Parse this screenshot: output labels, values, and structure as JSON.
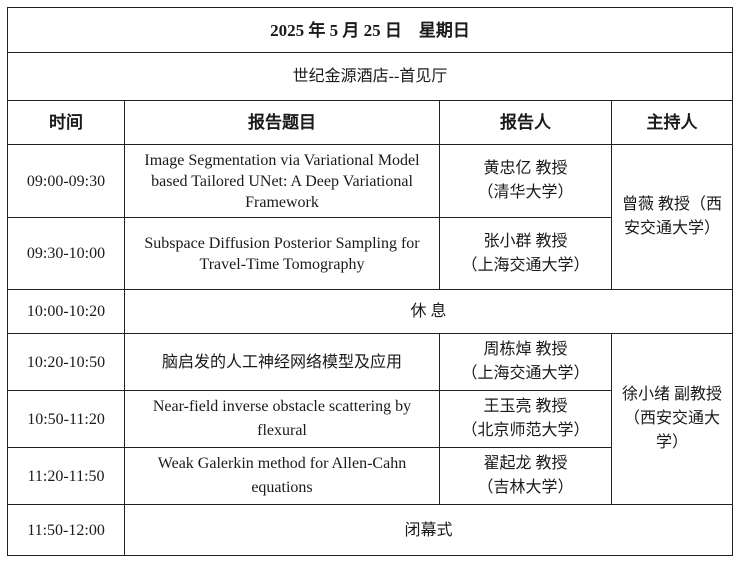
{
  "header": {
    "date": "2025 年 5 月 25 日　星期日",
    "venue": "世纪金源酒店--首见厅"
  },
  "columns": [
    "时间",
    "报告题目",
    "报告人",
    "主持人"
  ],
  "rows": [
    {
      "time": "09:00-09:30",
      "title": "Image Segmentation via Variational Model based Tailored UNet: A Deep Variational Framework",
      "speaker": "黄忠亿  教授",
      "affiliation": "（清华大学）"
    },
    {
      "time": "09:30-10:00",
      "title": "Subspace Diffusion Posterior Sampling for Travel-Time Tomography",
      "speaker": "张小群  教授",
      "affiliation": "（上海交通大学）"
    },
    {
      "time": "10:00-10:20",
      "break": "休  息"
    },
    {
      "time": "10:20-10:50",
      "title": "脑启发的人工神经网络模型及应用",
      "speaker": "周栋焯  教授",
      "affiliation": "（上海交通大学）"
    },
    {
      "time": "10:50-11:20",
      "title": "Near-field inverse obstacle scattering by flexural",
      "speaker": "王玉亮  教授",
      "affiliation": "（北京师范大学）"
    },
    {
      "time": "11:20-11:50",
      "title": "Weak Galerkin method for Allen-Cahn equations",
      "speaker": "翟起龙  教授",
      "affiliation": "（吉林大学）"
    },
    {
      "time": "11:50-12:00",
      "break": "闭幕式"
    }
  ],
  "hosts": [
    "曾薇  教授（西安交通大学）",
    "徐小绪 副教授（西安交通大学）"
  ]
}
